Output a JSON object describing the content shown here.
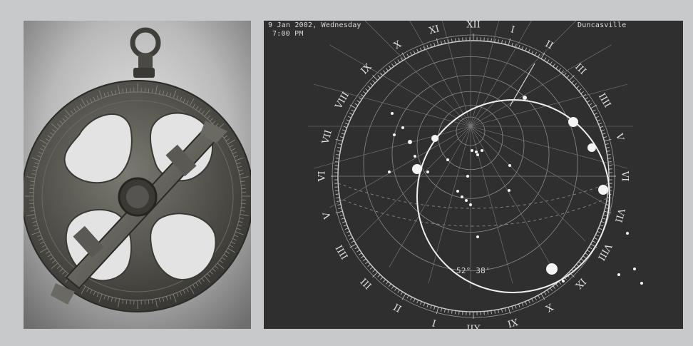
{
  "figure": {
    "left_photo": {
      "subject": "Mariner's astrolabe (bronze) with alidade and suspension ring",
      "background_color": "#9b9b9b"
    },
    "right_display": {
      "date_line": "9 Jan 2002, Wednesday",
      "time_line": "7:00 PM",
      "location": "Duncasville",
      "bottom_readout": "52° 38'",
      "background_color": "#2f2f2f",
      "hour_numerals": [
        "XII",
        "I",
        "II",
        "III",
        "IIII",
        "V",
        "VI",
        "VII",
        "VIII",
        "IX",
        "X",
        "XI",
        "XII",
        "I",
        "II",
        "III",
        "IIII",
        "V",
        "VI",
        "VII",
        "VIII",
        "IX",
        "X",
        "XI"
      ]
    }
  }
}
